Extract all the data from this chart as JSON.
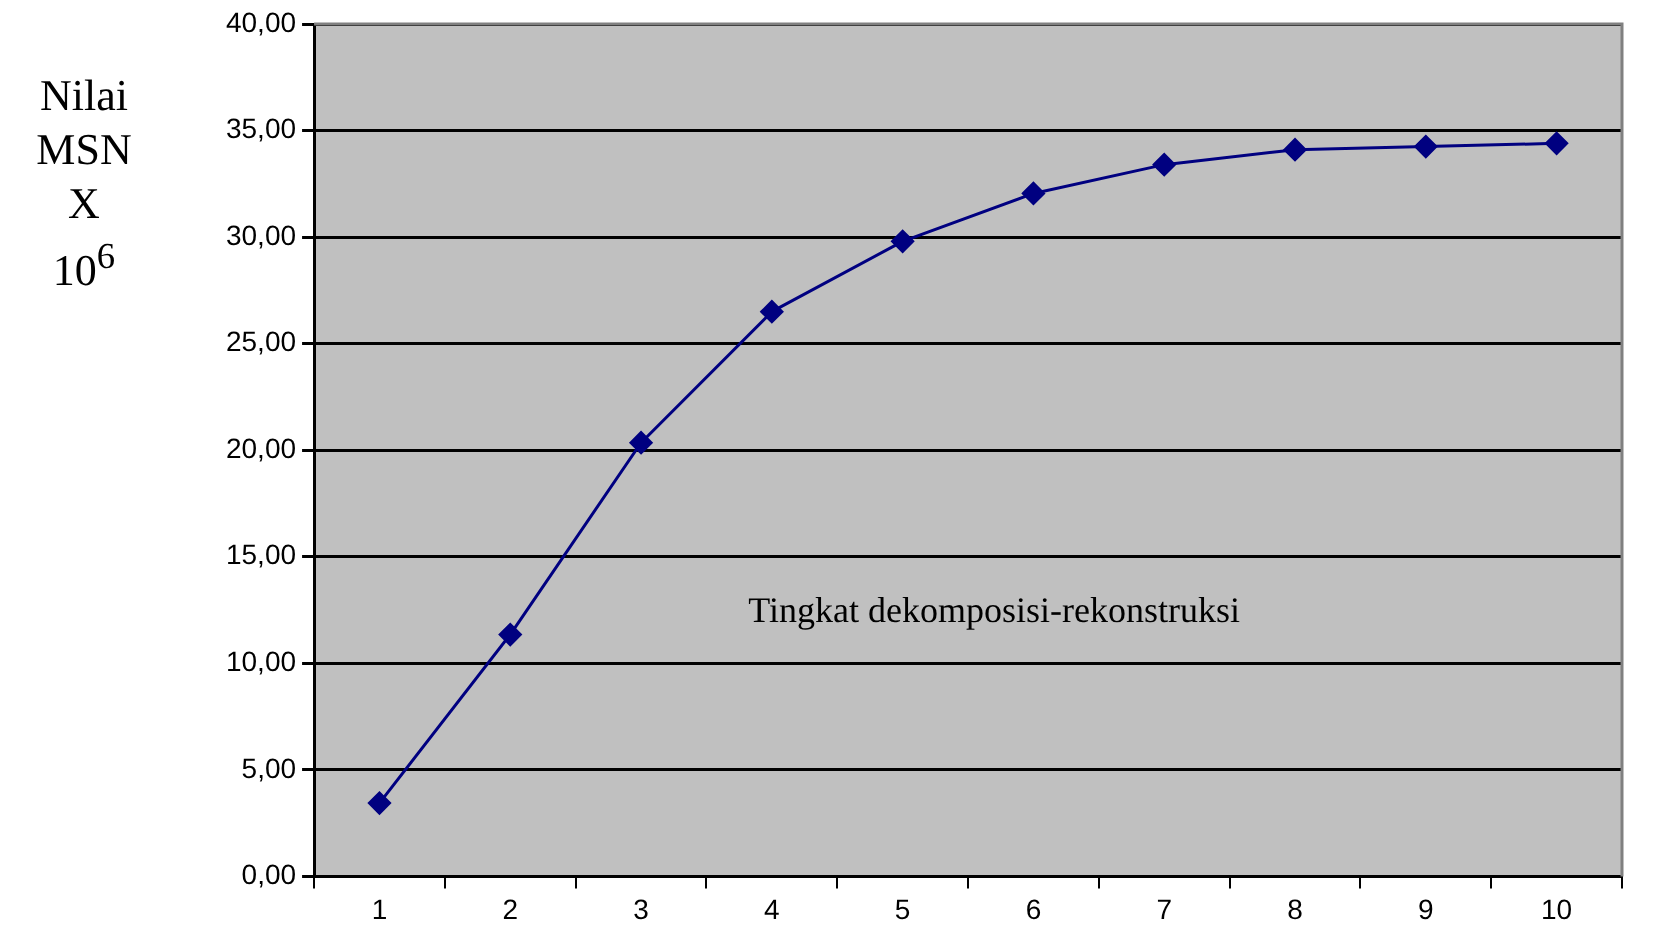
{
  "chart_data": {
    "type": "line",
    "xlabel": "Tingkat dekomposisi-rekonstruksi",
    "ylabel": "Nilai MSN X 10$^{6}$",
    "categories": [
      "1",
      "2",
      "3",
      "4",
      "5",
      "6",
      "7",
      "8",
      "9",
      "10"
    ],
    "series": [
      {
        "color": "#000080",
        "values": [
          3.44,
          11.35,
          20.35,
          26.5,
          29.8,
          32.05,
          33.4,
          34.1,
          34.25,
          34.4
        ]
      }
    ],
    "ylim": [
      0,
      40
    ],
    "yticks": [
      {
        "value": 0,
        "label": "0,00"
      },
      {
        "value": 5,
        "label": "5,00"
      },
      {
        "value": 10,
        "label": "10,00"
      },
      {
        "value": 15,
        "label": "15,00"
      },
      {
        "value": 20,
        "label": "20,00"
      },
      {
        "value": 25,
        "label": "25,00"
      },
      {
        "value": 30,
        "label": "30,00"
      },
      {
        "value": 35,
        "label": "35,00"
      },
      {
        "value": 40,
        "label": "40,00"
      }
    ],
    "grid": "y",
    "legend": false,
    "marker": "diamond",
    "line_style": "solid"
  }
}
